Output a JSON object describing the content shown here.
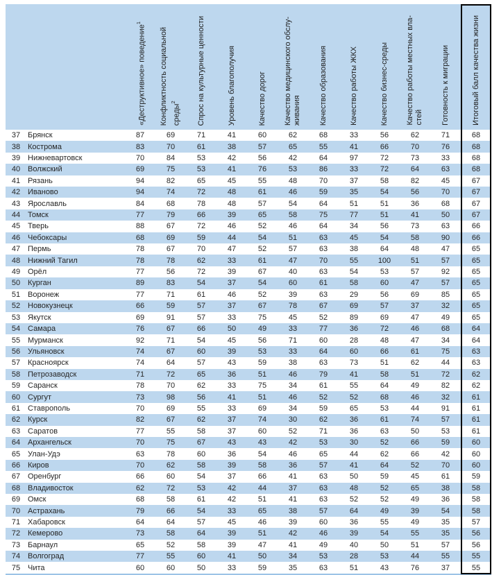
{
  "table": {
    "columns": [
      {
        "label": "«Деструктивное» поведение",
        "sup": "1"
      },
      {
        "label": "Конфликтность социальной\nсреды",
        "sup": "2"
      },
      {
        "label": "Спрос на культурные ценности"
      },
      {
        "label": "Уровень благополучия"
      },
      {
        "label": "Качество дорог"
      },
      {
        "label": "Качество медицинского обслу-\nживания"
      },
      {
        "label": "Качество образования"
      },
      {
        "label": "Качество работы ЖКХ"
      },
      {
        "label": "Качество бизнес-среды"
      },
      {
        "label": "Качество работы местных вла-\nстей"
      },
      {
        "label": "Готовность к миграции"
      },
      {
        "label": "Итоговый балл качества жизни"
      }
    ],
    "rows": [
      {
        "rank": "37",
        "city": "Брянск",
        "values": [
          87,
          69,
          71,
          41,
          60,
          62,
          68,
          33,
          56,
          62,
          71
        ],
        "total": 68
      },
      {
        "rank": "38",
        "city": "Кострома",
        "values": [
          83,
          70,
          61,
          38,
          57,
          65,
          55,
          41,
          66,
          70,
          76
        ],
        "total": 68
      },
      {
        "rank": "39",
        "city": "Нижневартовск",
        "values": [
          70,
          84,
          53,
          42,
          56,
          42,
          64,
          97,
          72,
          73,
          33
        ],
        "total": 68
      },
      {
        "rank": "40",
        "city": "Волжский",
        "values": [
          69,
          75,
          53,
          41,
          76,
          53,
          86,
          33,
          72,
          64,
          63
        ],
        "total": 68
      },
      {
        "rank": "41",
        "city": "Рязань",
        "values": [
          94,
          82,
          65,
          45,
          55,
          48,
          70,
          37,
          58,
          82,
          45
        ],
        "total": 67
      },
      {
        "rank": "42",
        "city": "Иваново",
        "values": [
          94,
          74,
          72,
          48,
          61,
          46,
          59,
          35,
          54,
          56,
          70
        ],
        "total": 67
      },
      {
        "rank": "43",
        "city": "Ярославль",
        "values": [
          84,
          68,
          78,
          48,
          57,
          54,
          64,
          51,
          51,
          36,
          68
        ],
        "total": 67
      },
      {
        "rank": "44",
        "city": "Томск",
        "values": [
          77,
          79,
          66,
          39,
          65,
          58,
          75,
          77,
          51,
          41,
          50
        ],
        "total": 67
      },
      {
        "rank": "45",
        "city": "Тверь",
        "values": [
          88,
          67,
          72,
          46,
          52,
          46,
          64,
          34,
          56,
          73,
          63
        ],
        "total": 66
      },
      {
        "rank": "46",
        "city": "Чебоксары",
        "values": [
          68,
          69,
          59,
          44,
          54,
          51,
          63,
          45,
          54,
          58,
          90
        ],
        "total": 66
      },
      {
        "rank": "47",
        "city": "Пермь",
        "values": [
          78,
          67,
          70,
          47,
          52,
          57,
          63,
          38,
          64,
          48,
          47
        ],
        "total": 65
      },
      {
        "rank": "48",
        "city": "Нижний Тагил",
        "values": [
          78,
          78,
          62,
          33,
          61,
          47,
          70,
          55,
          100,
          51,
          57
        ],
        "total": 65
      },
      {
        "rank": "49",
        "city": "Орёл",
        "values": [
          77,
          56,
          72,
          39,
          67,
          40,
          63,
          54,
          53,
          57,
          92
        ],
        "total": 65
      },
      {
        "rank": "50",
        "city": "Курган",
        "values": [
          89,
          83,
          54,
          37,
          54,
          60,
          61,
          58,
          60,
          47,
          57
        ],
        "total": 65
      },
      {
        "rank": "51",
        "city": "Воронеж",
        "values": [
          77,
          71,
          61,
          46,
          52,
          39,
          63,
          29,
          56,
          69,
          85
        ],
        "total": 65
      },
      {
        "rank": "52",
        "city": "Новокузнецк",
        "values": [
          66,
          59,
          57,
          37,
          67,
          78,
          67,
          69,
          57,
          37,
          32
        ],
        "total": 65
      },
      {
        "rank": "53",
        "city": "Якутск",
        "values": [
          69,
          91,
          57,
          33,
          75,
          45,
          52,
          89,
          69,
          47,
          49
        ],
        "total": 65
      },
      {
        "rank": "54",
        "city": "Самара",
        "values": [
          76,
          67,
          66,
          50,
          49,
          33,
          77,
          36,
          72,
          46,
          68
        ],
        "total": 64
      },
      {
        "rank": "55",
        "city": "Мурманск",
        "values": [
          92,
          71,
          54,
          45,
          56,
          71,
          60,
          28,
          48,
          47,
          34
        ],
        "total": 64
      },
      {
        "rank": "56",
        "city": "Ульяновск",
        "values": [
          74,
          67,
          60,
          39,
          53,
          33,
          64,
          60,
          66,
          61,
          75
        ],
        "total": 63
      },
      {
        "rank": "57",
        "city": "Красноярск",
        "values": [
          74,
          64,
          57,
          43,
          59,
          38,
          63,
          73,
          51,
          62,
          44
        ],
        "total": 63
      },
      {
        "rank": "58",
        "city": "Петрозаводск",
        "values": [
          71,
          72,
          65,
          36,
          51,
          46,
          79,
          41,
          58,
          51,
          72
        ],
        "total": 62
      },
      {
        "rank": "59",
        "city": "Саранск",
        "values": [
          78,
          70,
          62,
          33,
          75,
          34,
          61,
          55,
          64,
          49,
          82
        ],
        "total": 62
      },
      {
        "rank": "60",
        "city": "Сургут",
        "values": [
          73,
          98,
          56,
          41,
          51,
          46,
          52,
          52,
          68,
          46,
          32
        ],
        "total": 61
      },
      {
        "rank": "61",
        "city": "Ставрополь",
        "values": [
          70,
          69,
          55,
          33,
          69,
          34,
          59,
          65,
          53,
          44,
          91
        ],
        "total": 61
      },
      {
        "rank": "62",
        "city": "Курск",
        "values": [
          82,
          67,
          62,
          37,
          74,
          30,
          62,
          36,
          61,
          74,
          57
        ],
        "total": 61
      },
      {
        "rank": "63",
        "city": "Саратов",
        "values": [
          77,
          55,
          58,
          37,
          60,
          52,
          71,
          36,
          63,
          50,
          53
        ],
        "total": 61
      },
      {
        "rank": "64",
        "city": "Архангельск",
        "values": [
          70,
          75,
          67,
          43,
          43,
          42,
          53,
          30,
          52,
          66,
          59
        ],
        "total": 60
      },
      {
        "rank": "65",
        "city": "Улан-Удэ",
        "values": [
          63,
          78,
          60,
          36,
          54,
          46,
          65,
          44,
          62,
          66,
          42
        ],
        "total": 60
      },
      {
        "rank": "66",
        "city": "Киров",
        "values": [
          70,
          62,
          58,
          39,
          58,
          36,
          57,
          41,
          64,
          52,
          70
        ],
        "total": 60
      },
      {
        "rank": "67",
        "city": "Оренбург",
        "values": [
          66,
          60,
          54,
          37,
          66,
          41,
          63,
          50,
          59,
          45,
          61
        ],
        "total": 59
      },
      {
        "rank": "68",
        "city": "Владивосток",
        "values": [
          62,
          72,
          53,
          42,
          44,
          37,
          63,
          48,
          52,
          65,
          38
        ],
        "total": 58
      },
      {
        "rank": "69",
        "city": "Омск",
        "values": [
          68,
          58,
          61,
          42,
          51,
          41,
          63,
          52,
          52,
          49,
          36
        ],
        "total": 58
      },
      {
        "rank": "70",
        "city": "Астрахань",
        "values": [
          79,
          66,
          54,
          33,
          65,
          38,
          57,
          64,
          49,
          39,
          54
        ],
        "total": 58
      },
      {
        "rank": "71",
        "city": "Хабаровск",
        "values": [
          64,
          64,
          57,
          45,
          46,
          39,
          60,
          36,
          55,
          49,
          35
        ],
        "total": 57
      },
      {
        "rank": "72",
        "city": "Кемерово",
        "values": [
          73,
          58,
          64,
          39,
          51,
          42,
          46,
          39,
          54,
          55,
          35
        ],
        "total": 56
      },
      {
        "rank": "73",
        "city": "Барнаул",
        "values": [
          65,
          52,
          58,
          39,
          47,
          41,
          49,
          40,
          50,
          51,
          57
        ],
        "total": 56
      },
      {
        "rank": "74",
        "city": "Волгоград",
        "values": [
          77,
          55,
          60,
          41,
          50,
          34,
          53,
          28,
          53,
          44,
          55
        ],
        "total": 55
      },
      {
        "rank": "75",
        "city": "Чита",
        "values": [
          60,
          60,
          50,
          33,
          59,
          35,
          63,
          51,
          43,
          76,
          37
        ],
        "total": 55
      }
    ]
  },
  "colors": {
    "stripe": "#BDD7EE",
    "final_column_box": "#000000",
    "bottom_border": "#9CC3E6",
    "text": "#262626"
  }
}
